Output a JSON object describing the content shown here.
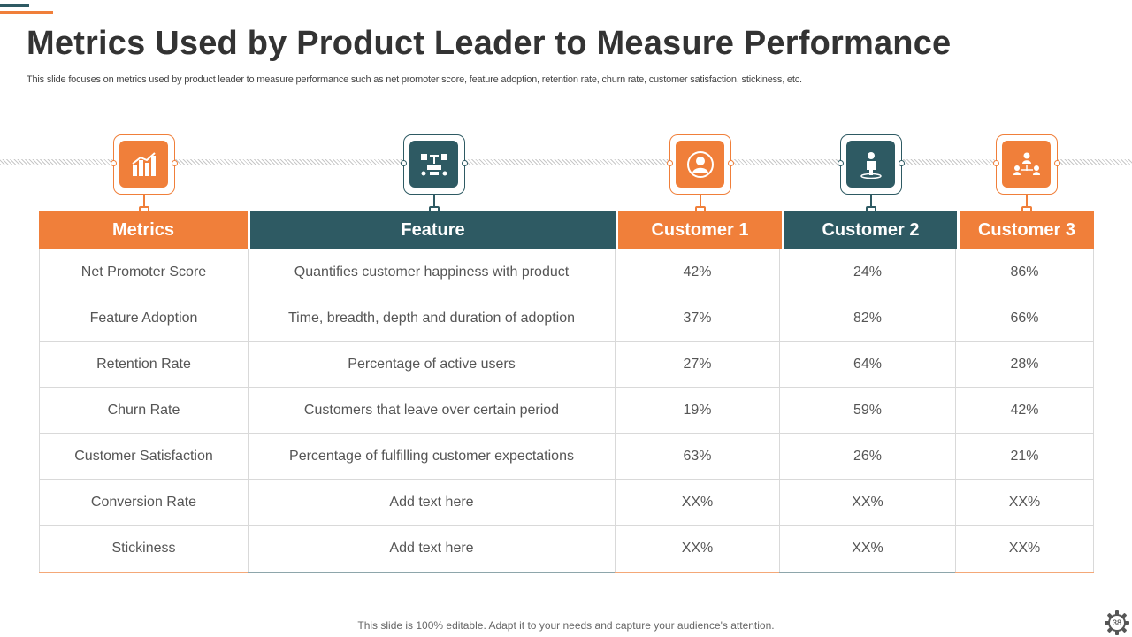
{
  "slide": {
    "title": "Metrics Used by Product Leader to Measure Performance",
    "subtitle": "This slide focuses on metrics used by product leader to measure performance such as net promoter score, feature adoption, retention rate, churn rate, customer satisfaction, stickiness, etc.",
    "footer": "This slide is 100% editable. Adapt it to your needs and capture your audience's attention.",
    "page_number": "38"
  },
  "colors": {
    "orange": "#f07f3a",
    "teal": "#2e5a63",
    "grid": "#d9d9d9",
    "text": "#555555"
  },
  "icons": [
    "bar-chart-icon",
    "feature-diagram-icon",
    "user-profile-icon",
    "person-location-icon",
    "user-network-icon"
  ],
  "table": {
    "headers": [
      "Metrics",
      "Feature",
      "Customer 1",
      "Customer 2",
      "Customer 3"
    ],
    "rows": [
      [
        "Net Promoter Score",
        "Quantifies customer happiness with product",
        "42%",
        "24%",
        "86%"
      ],
      [
        "Feature Adoption",
        "Time, breadth, depth and duration of adoption",
        "37%",
        "82%",
        "66%"
      ],
      [
        "Retention Rate",
        "Percentage of active users",
        "27%",
        "64%",
        "28%"
      ],
      [
        "Churn Rate",
        "Customers that leave over certain period",
        "19%",
        "59%",
        "42%"
      ],
      [
        "Customer Satisfaction",
        "Percentage of fulfilling customer expectations",
        "63%",
        "26%",
        "21%"
      ],
      [
        "Conversion Rate",
        "Add text here",
        "XX%",
        "XX%",
        "XX%"
      ],
      [
        "Stickiness",
        "Add text here",
        "XX%",
        "XX%",
        "XX%"
      ]
    ]
  }
}
